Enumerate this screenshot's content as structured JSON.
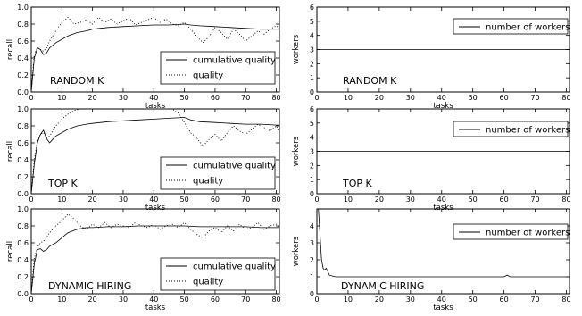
{
  "chart_data": [
    {
      "type": "line",
      "annotation": "RANDOM K",
      "xlabel": "tasks",
      "ylabel": "recall",
      "xlim": [
        0,
        81
      ],
      "ylim": [
        0,
        1.0
      ],
      "xticks": [
        0,
        10,
        20,
        30,
        40,
        50,
        60,
        70,
        80
      ],
      "yticks": [
        0.0,
        0.2,
        0.4,
        0.6,
        0.8,
        1.0
      ],
      "ytick_labels": [
        "0.0",
        "0.2",
        "0.4",
        "0.6",
        "0.8",
        "1.0"
      ],
      "legend": "right",
      "series": [
        {
          "name": "cumulative quality",
          "style": "solid",
          "x": [
            0,
            1,
            2,
            3,
            4,
            5,
            6,
            8,
            10,
            12,
            15,
            18,
            20,
            25,
            30,
            35,
            40,
            45,
            50,
            52,
            55,
            60,
            65,
            70,
            75,
            80,
            81
          ],
          "y": [
            0.0,
            0.4,
            0.52,
            0.5,
            0.44,
            0.46,
            0.52,
            0.58,
            0.62,
            0.66,
            0.7,
            0.72,
            0.74,
            0.76,
            0.77,
            0.78,
            0.79,
            0.79,
            0.8,
            0.79,
            0.78,
            0.77,
            0.76,
            0.75,
            0.74,
            0.74,
            0.74
          ]
        },
        {
          "name": "quality",
          "style": "dotted",
          "x": [
            0,
            1,
            2,
            3,
            4,
            5,
            6,
            8,
            10,
            12,
            14,
            16,
            18,
            20,
            22,
            24,
            26,
            28,
            30,
            32,
            34,
            36,
            38,
            40,
            42,
            44,
            46,
            48,
            50,
            52,
            54,
            56,
            58,
            60,
            62,
            64,
            66,
            68,
            70,
            72,
            74,
            76,
            78,
            80,
            81
          ],
          "y": [
            0.0,
            0.45,
            0.52,
            0.5,
            0.48,
            0.52,
            0.6,
            0.72,
            0.82,
            0.88,
            0.8,
            0.82,
            0.85,
            0.8,
            0.88,
            0.82,
            0.86,
            0.8,
            0.84,
            0.87,
            0.79,
            0.82,
            0.85,
            0.88,
            0.82,
            0.86,
            0.8,
            0.78,
            0.82,
            0.74,
            0.66,
            0.58,
            0.65,
            0.76,
            0.7,
            0.62,
            0.74,
            0.68,
            0.6,
            0.66,
            0.72,
            0.68,
            0.74,
            0.78,
            0.75
          ]
        }
      ]
    },
    {
      "type": "line",
      "annotation": "RANDOM K",
      "xlabel": "tasks",
      "ylabel": "workers",
      "xlim": [
        0,
        81
      ],
      "ylim": [
        0,
        6
      ],
      "xticks": [
        0,
        10,
        20,
        30,
        40,
        50,
        60,
        70,
        80
      ],
      "yticks": [
        0,
        1,
        2,
        3,
        4,
        5,
        6
      ],
      "ytick_labels": [
        "0",
        "1",
        "2",
        "3",
        "4",
        "5",
        "6"
      ],
      "legend": "top-right",
      "series": [
        {
          "name": "number of workers",
          "style": "solid",
          "x": [
            0,
            81
          ],
          "y": [
            3,
            3
          ]
        }
      ]
    },
    {
      "type": "line",
      "annotation": "TOP K",
      "xlabel": "tasks",
      "ylabel": "recall",
      "xlim": [
        0,
        81
      ],
      "ylim": [
        0,
        1.0
      ],
      "xticks": [
        0,
        10,
        20,
        30,
        40,
        50,
        60,
        70,
        80
      ],
      "yticks": [
        0.0,
        0.2,
        0.4,
        0.6,
        0.8,
        1.0
      ],
      "ytick_labels": [
        "0.0",
        "0.2",
        "0.4",
        "0.6",
        "0.8",
        "1.0"
      ],
      "legend": "right",
      "series": [
        {
          "name": "cumulative quality",
          "style": "solid",
          "x": [
            0,
            1,
            2,
            3,
            4,
            5,
            6,
            7,
            8,
            10,
            12,
            15,
            18,
            20,
            25,
            30,
            35,
            40,
            45,
            50,
            52,
            55,
            60,
            65,
            70,
            75,
            80,
            81
          ],
          "y": [
            0.0,
            0.35,
            0.6,
            0.7,
            0.75,
            0.65,
            0.6,
            0.64,
            0.68,
            0.72,
            0.76,
            0.8,
            0.82,
            0.83,
            0.85,
            0.86,
            0.87,
            0.88,
            0.89,
            0.9,
            0.87,
            0.85,
            0.84,
            0.83,
            0.82,
            0.82,
            0.81,
            0.81
          ]
        },
        {
          "name": "quality",
          "style": "dotted",
          "x": [
            0,
            1,
            2,
            3,
            4,
            5,
            6,
            8,
            10,
            12,
            14,
            16,
            18,
            20,
            22,
            24,
            26,
            28,
            30,
            32,
            34,
            36,
            38,
            40,
            42,
            44,
            46,
            48,
            50,
            52,
            54,
            56,
            58,
            60,
            62,
            64,
            66,
            68,
            70,
            72,
            74,
            76,
            78,
            80,
            81
          ],
          "y": [
            0.0,
            0.4,
            0.62,
            0.7,
            0.72,
            0.66,
            0.68,
            0.8,
            0.88,
            0.94,
            0.98,
            1.0,
            1.0,
            1.0,
            1.0,
            1.0,
            1.0,
            1.0,
            1.0,
            1.0,
            1.0,
            1.0,
            1.0,
            1.0,
            1.0,
            1.0,
            1.0,
            0.95,
            0.84,
            0.72,
            0.66,
            0.56,
            0.64,
            0.7,
            0.62,
            0.72,
            0.8,
            0.74,
            0.7,
            0.76,
            0.82,
            0.78,
            0.74,
            0.8,
            0.72
          ]
        }
      ]
    },
    {
      "type": "line",
      "annotation": "TOP K",
      "xlabel": "tasks",
      "ylabel": "workers",
      "xlim": [
        0,
        81
      ],
      "ylim": [
        0,
        6
      ],
      "xticks": [
        0,
        10,
        20,
        30,
        40,
        50,
        60,
        70,
        80
      ],
      "yticks": [
        0,
        1,
        2,
        3,
        4,
        5,
        6
      ],
      "ytick_labels": [
        "0",
        "1",
        "2",
        "3",
        "4",
        "5",
        "6"
      ],
      "legend": "top-right",
      "series": [
        {
          "name": "number of workers",
          "style": "solid",
          "x": [
            0,
            81
          ],
          "y": [
            3,
            3
          ]
        }
      ]
    },
    {
      "type": "line",
      "annotation": "DYNAMIC HIRING",
      "xlabel": "tasks",
      "ylabel": "recall",
      "xlim": [
        0,
        81
      ],
      "ylim": [
        0,
        1.0
      ],
      "xticks": [
        0,
        10,
        20,
        30,
        40,
        50,
        60,
        70,
        80
      ],
      "yticks": [
        0.0,
        0.2,
        0.4,
        0.6,
        0.8,
        1.0
      ],
      "ytick_labels": [
        "0.0",
        "0.2",
        "0.4",
        "0.6",
        "0.8",
        "1.0"
      ],
      "legend": "right",
      "series": [
        {
          "name": "cumulative quality",
          "style": "solid",
          "x": [
            0,
            1,
            2,
            3,
            4,
            5,
            6,
            8,
            10,
            12,
            15,
            18,
            20,
            25,
            30,
            35,
            40,
            45,
            50,
            55,
            60,
            65,
            70,
            75,
            80,
            81
          ],
          "y": [
            0.0,
            0.35,
            0.52,
            0.53,
            0.5,
            0.52,
            0.56,
            0.6,
            0.66,
            0.72,
            0.76,
            0.78,
            0.78,
            0.79,
            0.79,
            0.8,
            0.8,
            0.8,
            0.8,
            0.79,
            0.79,
            0.79,
            0.79,
            0.78,
            0.78,
            0.78
          ]
        },
        {
          "name": "quality",
          "style": "dotted",
          "x": [
            0,
            1,
            2,
            3,
            4,
            5,
            6,
            8,
            10,
            12,
            14,
            16,
            18,
            20,
            22,
            24,
            26,
            28,
            30,
            32,
            34,
            36,
            38,
            40,
            42,
            44,
            46,
            48,
            50,
            52,
            54,
            56,
            58,
            60,
            62,
            64,
            66,
            68,
            70,
            72,
            74,
            76,
            78,
            80,
            81
          ],
          "y": [
            0.0,
            0.42,
            0.55,
            0.6,
            0.62,
            0.66,
            0.72,
            0.8,
            0.86,
            0.94,
            0.88,
            0.8,
            0.76,
            0.82,
            0.78,
            0.84,
            0.78,
            0.82,
            0.8,
            0.78,
            0.84,
            0.8,
            0.78,
            0.82,
            0.76,
            0.8,
            0.82,
            0.78,
            0.84,
            0.76,
            0.7,
            0.66,
            0.74,
            0.78,
            0.72,
            0.8,
            0.74,
            0.82,
            0.76,
            0.78,
            0.84,
            0.76,
            0.8,
            0.82,
            0.78
          ]
        }
      ]
    },
    {
      "type": "line",
      "annotation": "DYNAMIC HIRING",
      "xlabel": "tasks",
      "ylabel": "workers",
      "xlim": [
        0,
        81
      ],
      "ylim": [
        0,
        5
      ],
      "xticks": [
        0,
        10,
        20,
        30,
        40,
        50,
        60,
        70,
        80
      ],
      "yticks": [
        0,
        1,
        2,
        3,
        4
      ],
      "ytick_labels": [
        "0",
        "1",
        "2",
        "3",
        "4"
      ],
      "legend": "right",
      "series": [
        {
          "name": "number of workers",
          "style": "solid",
          "x": [
            0,
            0.5,
            1,
            1.5,
            2,
            2.5,
            3,
            4,
            5,
            6,
            8,
            10,
            15,
            20,
            25,
            30,
            35,
            40,
            45,
            50,
            55,
            60,
            61,
            62,
            65,
            70,
            75,
            80,
            81
          ],
          "y": [
            5,
            5,
            3.5,
            2.0,
            1.5,
            1.4,
            1.5,
            1.1,
            1.05,
            1.0,
            1.0,
            1.0,
            1.0,
            1.0,
            1.0,
            1.0,
            1.0,
            1.0,
            1.0,
            1.0,
            1.0,
            1.0,
            1.1,
            1.0,
            1.0,
            1.0,
            1.0,
            1.0,
            1.0
          ]
        }
      ]
    }
  ]
}
